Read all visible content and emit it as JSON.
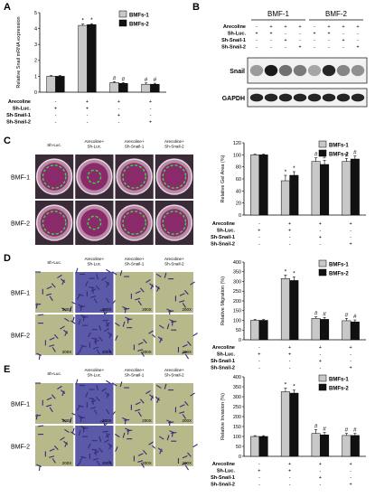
{
  "figure": {
    "panel_letters": [
      "A",
      "B",
      "C",
      "D",
      "E"
    ],
    "cell_lines": [
      "BMF-1",
      "BMF-2"
    ],
    "treatment_labels": [
      "Arecoline",
      "Sh-Luc.",
      "Sh-Snail-1",
      "Sh-Snail-2"
    ],
    "magnification_label": "200X",
    "legend": [
      "BMFs-1",
      "BMFs-2"
    ]
  },
  "panel_a": {
    "letter": "A",
    "ylabel": "Relative Snail mRNA expression",
    "yticks": [
      "0",
      "1",
      "2",
      "3",
      "4",
      "5"
    ],
    "signs": {
      "Arecoline": [
        "-",
        "+",
        "+",
        "+"
      ],
      "Sh-Luc.": [
        "+",
        "+",
        "-",
        "-"
      ],
      "Sh-Snail-1": [
        "-",
        "-",
        "+",
        "-"
      ],
      "Sh-Snail-2": [
        "-",
        "-",
        "-",
        "+"
      ]
    }
  },
  "panel_b": {
    "letter": "B",
    "groups": [
      "BMF-1",
      "BMF-2"
    ],
    "signs": {
      "Arecoline": [
        "-",
        "+",
        "+",
        "+",
        "-",
        "+",
        "+",
        "+"
      ],
      "Sh-Luc.": [
        "+",
        "+",
        "-",
        "-",
        "+",
        "+",
        "-",
        "-"
      ],
      "Sh-Snail-1": [
        "-",
        "-",
        "+",
        "-",
        "-",
        "-",
        "+",
        "-"
      ],
      "Sh-Snail-2": [
        "-",
        "-",
        "-",
        "+",
        "-",
        "-",
        "-",
        "+"
      ]
    },
    "bands": {
      "snail_label": "Snail",
      "gapdh_label": "GAPDH",
      "snail_intensity": [
        0.35,
        0.95,
        0.55,
        0.5,
        0.3,
        0.9,
        0.45,
        0.4
      ],
      "gapdh_intensity": [
        0.9,
        0.9,
        0.9,
        0.9,
        0.9,
        0.9,
        0.9,
        0.9
      ]
    }
  },
  "panel_c": {
    "letter": "C",
    "column_headers": [
      "Sh-Luc.",
      "Arecoline+ Sh-Luc.",
      "Arecoline+ Sh-Snail-1",
      "Arecoline+ Sh-Snail-2"
    ],
    "row_labels": [
      "BMF-1",
      "BMF-2"
    ],
    "ylabel": "Relative Gel Area (%)",
    "yticks": [
      "0",
      "20",
      "40",
      "60",
      "80",
      "100",
      "120"
    ],
    "signs": {
      "Arecoline": [
        "-",
        "+",
        "+",
        "+"
      ],
      "Sh-Luc.": [
        "+",
        "+",
        "-",
        "-"
      ],
      "Sh-Snail-1": [
        "-",
        "-",
        "+",
        "-"
      ],
      "Sh-Snail-2": [
        "-",
        "-",
        "-",
        "+"
      ]
    }
  },
  "panel_d": {
    "letter": "D",
    "column_headers": [
      "Sh-Luc.",
      "Arecoline+ Sh-Luc.",
      "Arecoline+ Sh-Snail-1",
      "Arecoline+ Sh-Snail-2"
    ],
    "row_labels": [
      "BMF-1",
      "BMF-2"
    ],
    "ylabel": "Relative Migration (%)",
    "yticks": [
      "0",
      "50",
      "100",
      "150",
      "200",
      "250",
      "300",
      "350",
      "400"
    ],
    "signs": {
      "Arecoline": [
        "-",
        "+",
        "+",
        "+"
      ],
      "Sh-Luc.": [
        "+",
        "+",
        "-",
        "-"
      ],
      "Sh-Snail-1": [
        "-",
        "-",
        "+",
        "-"
      ],
      "Sh-Snail-2": [
        "-",
        "-",
        "-",
        "+"
      ]
    }
  },
  "panel_e": {
    "letter": "E",
    "column_headers": [
      "Sh-Luc.",
      "Arecoline+ Sh-Luc.",
      "Arecoline+ Sh-Snail-1",
      "Arecoline+ Sh-Snail-2"
    ],
    "row_labels": [
      "BMF-1",
      "BMF-2"
    ],
    "ylabel": "Relative Invasion (%)",
    "yticks": [
      "0",
      "50",
      "100",
      "150",
      "200",
      "250",
      "300",
      "350",
      "400"
    ],
    "signs": {
      "Arecoline": [
        "-",
        "+",
        "+",
        "+"
      ],
      "Sh-Luc.": [
        "+",
        "+",
        "-",
        "-"
      ],
      "Sh-Snail-1": [
        "-",
        "-",
        "+",
        "-"
      ],
      "Sh-Snail-2": [
        "-",
        "-",
        "-",
        "+"
      ]
    }
  },
  "chart_data": [
    {
      "type": "bar",
      "panel": "A",
      "ylabel": "Relative Snail mRNA expression",
      "ylim": [
        0,
        5
      ],
      "yticks": [
        0,
        1,
        2,
        3,
        4,
        5
      ],
      "legend_position": "top-right",
      "series": [
        {
          "name": "BMFs-1",
          "values": [
            1.0,
            4.2,
            0.6,
            0.5
          ],
          "errors": [
            0.05,
            0.08,
            0.06,
            0.08
          ],
          "marks": [
            "",
            "*",
            "#",
            "#"
          ]
        },
        {
          "name": "BMFs-2",
          "values": [
            1.0,
            4.25,
            0.55,
            0.5
          ],
          "errors": [
            0.05,
            0.06,
            0.05,
            0.06
          ],
          "marks": [
            "",
            "*",
            "#",
            "#"
          ]
        }
      ]
    },
    {
      "type": "bar",
      "panel": "C",
      "ylabel": "Relative Gel Area (%)",
      "ylim": [
        0,
        120
      ],
      "yticks": [
        0,
        20,
        40,
        60,
        80,
        100,
        120
      ],
      "legend_position": "top-right",
      "series": [
        {
          "name": "BMFs-1",
          "values": [
            100,
            57,
            89,
            89
          ],
          "errors": [
            1,
            9,
            6,
            5
          ],
          "marks": [
            "",
            "*",
            "#",
            "#"
          ]
        },
        {
          "name": "BMFs-2",
          "values": [
            100,
            66,
            84,
            93
          ],
          "errors": [
            1,
            6,
            7,
            5
          ],
          "marks": [
            "",
            "*",
            "#",
            "#"
          ]
        }
      ]
    },
    {
      "type": "bar",
      "panel": "D",
      "ylabel": "Relative Migration (%)",
      "ylim": [
        0,
        400
      ],
      "yticks": [
        0,
        50,
        100,
        150,
        200,
        250,
        300,
        350,
        400
      ],
      "legend_position": "top-right",
      "series": [
        {
          "name": "BMFs-1",
          "values": [
            100,
            315,
            110,
            98
          ],
          "errors": [
            4,
            18,
            8,
            12
          ],
          "marks": [
            "",
            "*",
            "#",
            "#"
          ]
        },
        {
          "name": "BMFs-2",
          "values": [
            100,
            305,
            105,
            92
          ],
          "errors": [
            4,
            18,
            10,
            10
          ],
          "marks": [
            "",
            "*",
            "#",
            "#"
          ]
        }
      ]
    },
    {
      "type": "bar",
      "panel": "E",
      "ylabel": "Relative Invasion (%)",
      "ylim": [
        0,
        400
      ],
      "yticks": [
        0,
        50,
        100,
        150,
        200,
        250,
        300,
        350,
        400
      ],
      "legend_position": "top-right",
      "series": [
        {
          "name": "BMFs-1",
          "values": [
            100,
            325,
            115,
            105
          ],
          "errors": [
            4,
            18,
            20,
            10
          ],
          "marks": [
            "",
            "*",
            "#",
            "#"
          ]
        },
        {
          "name": "BMFs-2",
          "values": [
            100,
            318,
            108,
            105
          ],
          "errors": [
            4,
            15,
            12,
            10
          ],
          "marks": [
            "",
            "*",
            "#",
            "#"
          ]
        }
      ]
    }
  ]
}
